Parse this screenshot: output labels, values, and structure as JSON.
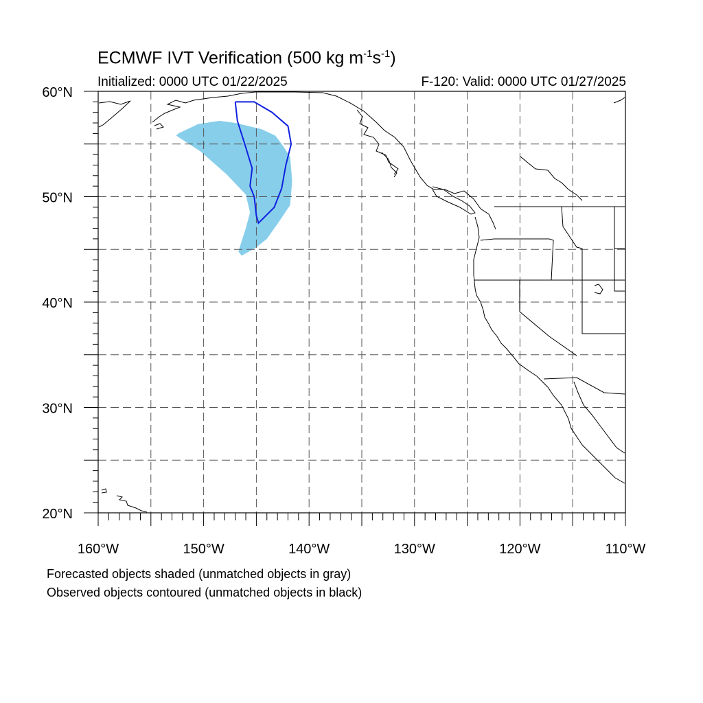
{
  "header": {
    "title_main": "ECMWF IVT Verification (500 kg m",
    "title_exp1": "-1",
    "title_s": "s",
    "title_exp2": "-1",
    "title_close": ")",
    "initialized": "Initialized: 0000 UTC 01/22/2025",
    "valid": "F-120: Valid: 0000 UTC 01/27/2025"
  },
  "map": {
    "lon_range": [
      -160,
      -110
    ],
    "lat_range": [
      20,
      60
    ],
    "lon_labels": [
      "160°W",
      "150°W",
      "140°W",
      "130°W",
      "120°W",
      "110°W"
    ],
    "lat_labels": [
      "20°N",
      "30°N",
      "40°N",
      "50°N",
      "60°N"
    ],
    "colors": {
      "forecast_fill": "#87ceeb",
      "observed_contour": "#1020e0",
      "coast": "#000000",
      "grid": "#555555"
    },
    "forecast_object": [
      [
        -152.4,
        56.0
      ],
      [
        -150.5,
        56.9
      ],
      [
        -148.5,
        57.2
      ],
      [
        -147.0,
        57.0
      ],
      [
        -144.5,
        56.4
      ],
      [
        -143.2,
        55.8
      ],
      [
        -142.6,
        55.0
      ],
      [
        -141.8,
        53.8
      ],
      [
        -141.6,
        51.5
      ],
      [
        -141.8,
        49.2
      ],
      [
        -142.8,
        47.7
      ],
      [
        -144.0,
        46.0
      ],
      [
        -145.0,
        45.2
      ],
      [
        -146.4,
        44.4
      ],
      [
        -146.7,
        44.8
      ],
      [
        -146.0,
        47.0
      ],
      [
        -145.6,
        48.5
      ],
      [
        -146.0,
        50.2
      ],
      [
        -147.8,
        52.1
      ],
      [
        -150.3,
        54.3
      ],
      [
        -152.6,
        55.8
      ]
    ],
    "observed_object": [
      [
        -147.0,
        59.0
      ],
      [
        -145.2,
        59.0
      ],
      [
        -143.5,
        58.0
      ],
      [
        -142.0,
        56.7
      ],
      [
        -141.7,
        55.0
      ],
      [
        -142.2,
        53.0
      ],
      [
        -142.6,
        50.8
      ],
      [
        -143.3,
        49.0
      ],
      [
        -144.8,
        47.5
      ],
      [
        -145.0,
        48.2
      ],
      [
        -145.2,
        50.0
      ],
      [
        -145.6,
        51.0
      ],
      [
        -145.4,
        52.7
      ],
      [
        -146.1,
        55.0
      ],
      [
        -146.8,
        57.2
      ],
      [
        -147.0,
        59.0
      ]
    ]
  },
  "footer": {
    "note1": "Forecasted objects shaded (unmatched objects in gray)",
    "note2": "Observed objects contoured (unmatched objects in black)"
  }
}
